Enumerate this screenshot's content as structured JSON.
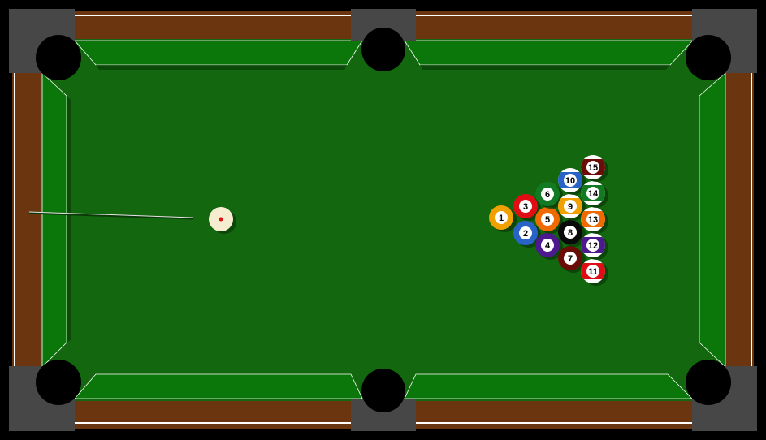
{
  "game": {
    "name": "pool",
    "colors": {
      "background": "#000000",
      "rail_wood": "#6b3510",
      "pocket_plate": "#474747",
      "pocket_hole": "#000000",
      "cloth": "#12670f",
      "cushion": "#0b770a",
      "cushion_edge": "#ffffff",
      "cue_ball": "#f6ecd0",
      "cue_ball_dot": "#e01010"
    },
    "cue_ball": {
      "state": "aimed"
    },
    "balls": [
      {
        "number": "1",
        "color": "#f0a000",
        "stripe": false
      },
      {
        "number": "2",
        "color": "#2a63c8",
        "stripe": false
      },
      {
        "number": "3",
        "color": "#e00e14",
        "stripe": false
      },
      {
        "number": "4",
        "color": "#4c1a8c",
        "stripe": false
      },
      {
        "number": "5",
        "color": "#ef6a00",
        "stripe": false
      },
      {
        "number": "6",
        "color": "#117a22",
        "stripe": false
      },
      {
        "number": "7",
        "color": "#6a0c08",
        "stripe": false
      },
      {
        "number": "8",
        "color": "#0a0a0a",
        "stripe": false
      },
      {
        "number": "9",
        "color": "#f0a000",
        "stripe": true
      },
      {
        "number": "10",
        "color": "#2a63c8",
        "stripe": true
      },
      {
        "number": "11",
        "color": "#e00e14",
        "stripe": true
      },
      {
        "number": "12",
        "color": "#4c1a8c",
        "stripe": true
      },
      {
        "number": "13",
        "color": "#ef6a00",
        "stripe": true
      },
      {
        "number": "14",
        "color": "#117a22",
        "stripe": true
      },
      {
        "number": "15",
        "color": "#6a0c08",
        "stripe": true
      }
    ]
  }
}
